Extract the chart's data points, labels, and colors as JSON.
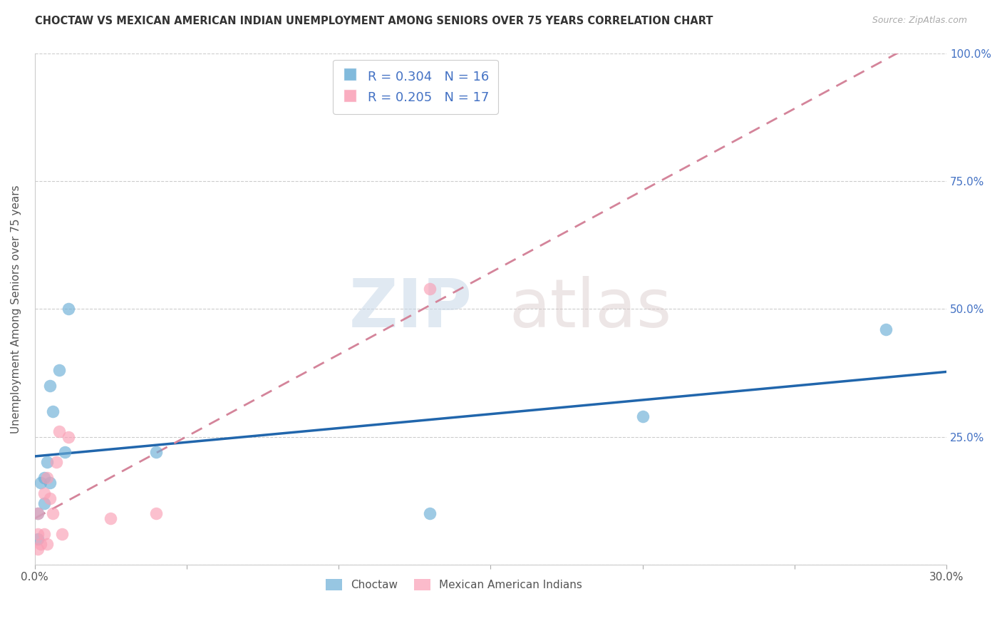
{
  "title": "CHOCTAW VS MEXICAN AMERICAN INDIAN UNEMPLOYMENT AMONG SENIORS OVER 75 YEARS CORRELATION CHART",
  "source": "Source: ZipAtlas.com",
  "ylabel": "Unemployment Among Seniors over 75 years",
  "xlim": [
    0.0,
    0.3
  ],
  "ylim": [
    0.0,
    1.0
  ],
  "choctaw_R": 0.304,
  "choctaw_N": 16,
  "mexican_R": 0.205,
  "mexican_N": 17,
  "choctaw_color": "#6baed6",
  "mexican_color": "#fa9fb5",
  "choctaw_line_color": "#2166ac",
  "mexican_line_color": "#d4849a",
  "watermark_zip": "ZIP",
  "watermark_atlas": "atlas",
  "choctaw_x": [
    0.001,
    0.001,
    0.002,
    0.003,
    0.003,
    0.004,
    0.005,
    0.005,
    0.006,
    0.008,
    0.01,
    0.011,
    0.04,
    0.13,
    0.2,
    0.28
  ],
  "choctaw_y": [
    0.05,
    0.1,
    0.16,
    0.12,
    0.17,
    0.2,
    0.16,
    0.35,
    0.3,
    0.38,
    0.22,
    0.5,
    0.22,
    0.1,
    0.29,
    0.46
  ],
  "mexican_x": [
    0.001,
    0.001,
    0.001,
    0.002,
    0.003,
    0.003,
    0.004,
    0.004,
    0.005,
    0.006,
    0.007,
    0.008,
    0.009,
    0.011,
    0.025,
    0.04,
    0.13
  ],
  "mexican_y": [
    0.03,
    0.06,
    0.1,
    0.04,
    0.06,
    0.14,
    0.04,
    0.17,
    0.13,
    0.1,
    0.2,
    0.26,
    0.06,
    0.25,
    0.09,
    0.1,
    0.54
  ]
}
